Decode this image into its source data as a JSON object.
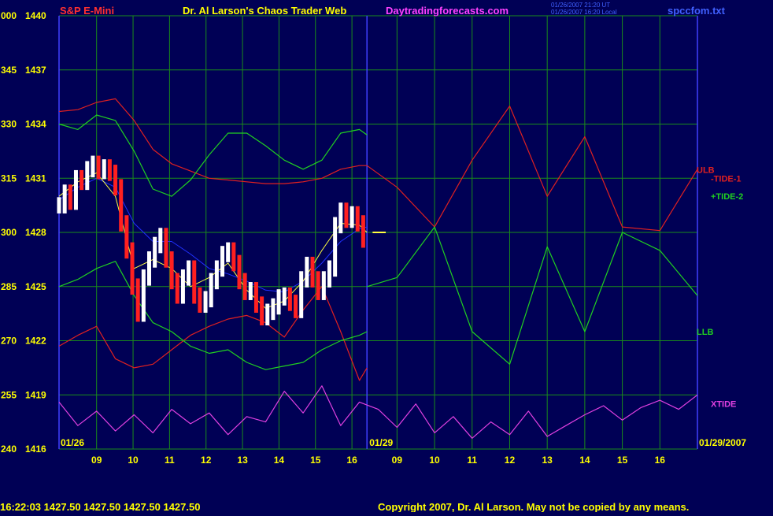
{
  "header": {
    "instrument": "S&P E-Mini",
    "site_title": "Dr. Al Larson's Chaos Trader Web",
    "site_url": "Daytradingforecasts.com",
    "stamp_line1": "01/26/2007 21:20 UT",
    "stamp_line2": "01/26/2007 16:20 Local",
    "data_file": "spccfom.txt"
  },
  "footer": {
    "quote_line": "16:22:03  1427.50  1427.50  1427.50  1427.50",
    "copyright": "Copyright 2007, Dr. Al Larson. May not be copied by any means."
  },
  "colors": {
    "background": "#000055",
    "grid": "#1a8c1a",
    "price_up": "#ffffff",
    "price_down": "#ff2020",
    "bands_red": "#e02020",
    "bands_green": "#20d020",
    "xtide": "#e040e0",
    "avg_blue": "#2030ff",
    "avg_yellow": "#ffff40",
    "axis_labels": "#ffff00",
    "separator": "#4040ff"
  },
  "chart_data": {
    "type": "line",
    "title": "S&P E-Mini",
    "y_labels": [
      {
        "osc": "000",
        "price": "1440"
      },
      {
        "osc": "345",
        "price": "1437"
      },
      {
        "osc": "330",
        "price": "1434"
      },
      {
        "osc": "315",
        "price": "1431"
      },
      {
        "osc": "300",
        "price": "1428"
      },
      {
        "osc": "285",
        "price": "1425"
      },
      {
        "osc": "270",
        "price": "1422"
      },
      {
        "osc": "255",
        "price": "1419"
      },
      {
        "osc": "240",
        "price": "1416"
      }
    ],
    "ylim": [
      1416,
      1440
    ],
    "x_date_labels": [
      "01/26",
      "01/29",
      "01/29/2007"
    ],
    "x_tick_labels": [
      "09",
      "10",
      "11",
      "12",
      "13",
      "14",
      "15",
      "16",
      "09",
      "10",
      "11",
      "12",
      "13",
      "14",
      "15",
      "16"
    ],
    "xlim": [
      8,
      25
    ],
    "session_break_x": 16.2,
    "price_bars": {
      "x": [
        8.0,
        8.15,
        8.3,
        8.45,
        8.6,
        8.75,
        8.9,
        9.05,
        9.2,
        9.35,
        9.5,
        9.65,
        9.8,
        9.95,
        10.1,
        10.25,
        10.4,
        10.55,
        10.7,
        10.85,
        11.0,
        11.15,
        11.3,
        11.45,
        11.6,
        11.75,
        11.9,
        12.05,
        12.2,
        12.35,
        12.5,
        12.65,
        12.8,
        12.95,
        13.1,
        13.25,
        13.4,
        13.55,
        13.7,
        13.85,
        14.0,
        14.15,
        14.3,
        14.45,
        14.6,
        14.75,
        14.9,
        15.05,
        15.2,
        15.35,
        15.5,
        15.65,
        15.8,
        15.95,
        16.1
      ],
      "close": [
        1429.5,
        1430.2,
        1429.7,
        1431.0,
        1430.8,
        1431.5,
        1431.8,
        1431.4,
        1431.6,
        1431.3,
        1430.5,
        1428.5,
        1427.0,
        1425.0,
        1423.5,
        1425.5,
        1426.5,
        1427.3,
        1427.8,
        1426.5,
        1425.3,
        1424.5,
        1425.5,
        1426.0,
        1424.5,
        1424.0,
        1424.3,
        1425.3,
        1426.0,
        1426.8,
        1427.0,
        1426.3,
        1425.3,
        1424.7,
        1424.8,
        1424.0,
        1423.3,
        1423.6,
        1423.9,
        1424.4,
        1424.5,
        1424.1,
        1423.7,
        1425.4,
        1426.2,
        1425.4,
        1424.7,
        1425.4,
        1426.0,
        1428.4,
        1429.2,
        1428.7,
        1429.0,
        1428.5,
        1427.6
      ]
    },
    "series": [
      {
        "name": "ULB",
        "color": "#e02020",
        "x": [
          8,
          8.5,
          9,
          9.5,
          10,
          10.5,
          11,
          11.5,
          12,
          12.5,
          13,
          13.5,
          14,
          14.5,
          15,
          15.5,
          16,
          16.2
        ],
        "y": [
          1434.7,
          1434.8,
          1435.2,
          1435.4,
          1434.2,
          1432.6,
          1431.8,
          1431.4,
          1431.0,
          1430.9,
          1430.8,
          1430.7,
          1430.7,
          1430.8,
          1431.0,
          1431.5,
          1431.7,
          1431.7
        ]
      },
      {
        "name": "LLB",
        "color": "#e02020",
        "x": [
          8,
          8.5,
          9,
          9.5,
          10,
          10.5,
          11,
          11.5,
          12,
          12.5,
          13,
          13.5,
          14,
          14.5,
          15,
          15.5,
          16,
          16.2
        ],
        "y": [
          1421.7,
          1422.3,
          1422.8,
          1421.0,
          1420.5,
          1420.7,
          1421.5,
          1422.3,
          1422.8,
          1423.2,
          1423.4,
          1423.0,
          1422.2,
          1423.7,
          1425.0,
          1422.5,
          1419.8,
          1420.5
        ]
      },
      {
        "name": "-TIDE-1",
        "color": "#e02020",
        "x": [
          16.2,
          17,
          18,
          19,
          20,
          21,
          22,
          23,
          24,
          25
        ],
        "y": [
          1431.7,
          1430.5,
          1428.3,
          1432.0,
          1435.0,
          1430.0,
          1433.3,
          1428.3,
          1428.1,
          1431.5
        ]
      },
      {
        "name": "+TIDE-2",
        "color": "#20d020",
        "x": [
          16.2,
          17,
          18,
          19,
          20,
          21,
          22,
          23,
          24,
          25
        ],
        "y": [
          1425.0,
          1425.5,
          1428.3,
          1422.5,
          1420.7,
          1427.2,
          1422.5,
          1428.0,
          1427.0,
          1424.5
        ]
      },
      {
        "name": "XTIDE",
        "color": "#e040e0",
        "x": [
          8,
          8.5,
          9,
          9.5,
          10,
          10.5,
          11,
          11.5,
          12,
          12.5,
          13,
          13.5,
          14,
          14.5,
          15,
          15.5,
          16,
          16.5,
          17,
          17.5,
          18,
          18.5,
          19,
          19.5,
          20,
          20.5,
          21,
          21.5,
          22,
          22.5,
          23,
          23.5,
          24,
          24.5,
          25
        ],
        "y": [
          1418.6,
          1417.3,
          1418.1,
          1417.0,
          1417.9,
          1416.9,
          1418.2,
          1417.4,
          1418.0,
          1416.8,
          1417.8,
          1417.5,
          1419.2,
          1418.0,
          1419.5,
          1417.3,
          1418.6,
          1418.2,
          1417.2,
          1418.5,
          1416.9,
          1417.8,
          1416.6,
          1417.5,
          1416.8,
          1418.1,
          1416.7,
          1417.3,
          1417.9,
          1418.4,
          1417.6,
          1418.3,
          1418.7,
          1418.2,
          1419.0
        ]
      },
      {
        "name": "green-mid",
        "color": "#20d020",
        "x": [
          8,
          8.5,
          9,
          9.5,
          10,
          10.5,
          11,
          11.5,
          12,
          12.5,
          13,
          13.5,
          14,
          14.5,
          15,
          15.5,
          16,
          16.2
        ],
        "y": [
          1434.0,
          1433.7,
          1434.5,
          1434.2,
          1432.5,
          1430.4,
          1430.0,
          1430.9,
          1432.3,
          1433.5,
          1433.5,
          1432.8,
          1432.0,
          1431.5,
          1432.0,
          1433.5,
          1433.7,
          1433.4
        ]
      },
      {
        "name": "green-low",
        "color": "#20d020",
        "x": [
          8,
          8.5,
          9,
          9.5,
          10,
          10.5,
          11,
          11.5,
          12,
          12.5,
          13,
          13.5,
          14,
          14.5,
          15,
          15.5,
          16,
          16.2
        ],
        "y": [
          1425.0,
          1425.4,
          1426.0,
          1426.4,
          1424.5,
          1423.0,
          1422.5,
          1421.7,
          1421.3,
          1421.5,
          1420.8,
          1420.4,
          1420.6,
          1420.8,
          1421.5,
          1422.0,
          1422.3,
          1422.5
        ]
      },
      {
        "name": "blue-avg",
        "color": "#2030ff",
        "x": [
          8,
          8.5,
          9,
          9.5,
          10,
          10.5,
          11,
          11.5,
          12,
          12.5,
          13,
          13.5,
          14,
          14.5,
          15,
          15.5,
          16,
          16.2
        ],
        "y": [
          1429.8,
          1430.5,
          1431.0,
          1430.5,
          1428.5,
          1427.5,
          1427.5,
          1426.8,
          1426.0,
          1425.7,
          1425.3,
          1424.8,
          1424.7,
          1425.3,
          1426.3,
          1427.5,
          1428.2,
          1428.3
        ]
      },
      {
        "name": "yellow-avg",
        "color": "#ffff40",
        "x": [
          8,
          8.5,
          9,
          9.5,
          10,
          10.5,
          11,
          11.5,
          12,
          12.5,
          13,
          13.5,
          14,
          14.5,
          15,
          15.5,
          16,
          16.2
        ],
        "y": [
          1430.0,
          1430.8,
          1431.3,
          1430.0,
          1426.0,
          1426.5,
          1426.0,
          1425.0,
          1425.5,
          1426.3,
          1424.8,
          1423.8,
          1424.2,
          1425.3,
          1427.0,
          1428.5,
          1428.4,
          1428.0
        ]
      }
    ],
    "series_labels": [
      {
        "text": "ULB",
        "color": "#e02020"
      },
      {
        "text": "-TIDE-1",
        "color": "#e02020"
      },
      {
        "text": "+TIDE-2",
        "color": "#20d020"
      },
      {
        "text": "LLB",
        "color": "#20d020"
      },
      {
        "text": "XTIDE",
        "color": "#e040e0"
      }
    ],
    "last_price_marker": 1428.0,
    "grid": true
  }
}
